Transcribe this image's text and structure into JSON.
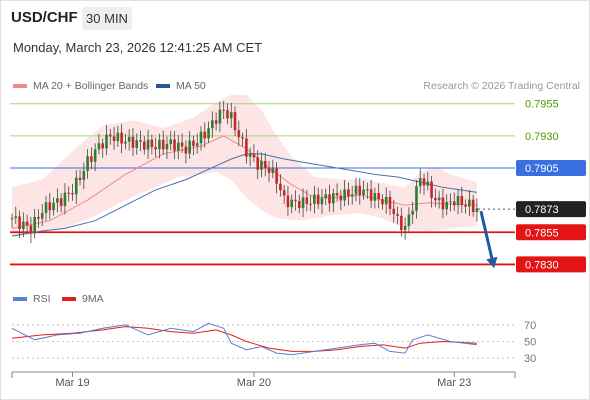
{
  "header": {
    "symbol": "USD/CHF",
    "timeframe": "30 MIN",
    "datetime": "Monday, March 23, 2026 12:41:25 AM CET"
  },
  "legend": {
    "main": [
      {
        "label": "MA 20 + Bollinger Bands",
        "color": "#f08a8a"
      },
      {
        "label": "MA 50",
        "color": "#2a5599"
      }
    ],
    "rsi": [
      {
        "label": "RSI",
        "color": "#5b7fd4"
      },
      {
        "label": "9MA",
        "color": "#e0201c"
      }
    ]
  },
  "credit": "Research © 2026 Trading Central",
  "chart_data": {
    "type": "candlestick",
    "instrument": "USD/CHF",
    "y_range": [
      0.7814,
      0.7975
    ],
    "x_ticks": [
      {
        "label": "Mar 19",
        "index": 16
      },
      {
        "label": "Mar 20",
        "index": 64
      },
      {
        "label": "Mar 23",
        "index": 117
      }
    ],
    "levels": [
      {
        "label": "0.7955",
        "value": 0.7955,
        "kind": "resistance",
        "color": "#a7d08c",
        "text_color": "#4e9a06"
      },
      {
        "label": "0.7930",
        "value": 0.793,
        "kind": "resistance",
        "color": "#a7d08c",
        "text_color": "#4e9a06"
      },
      {
        "label": "0.7905",
        "value": 0.7905,
        "kind": "pivot",
        "color": "#3a6fe0",
        "text_color": "#ffffff"
      },
      {
        "label": "0.7873",
        "value": 0.7873,
        "kind": "last",
        "color": "#222222",
        "text_color": "#ffffff"
      },
      {
        "label": "0.7855",
        "value": 0.7855,
        "kind": "support",
        "color": "#e31414",
        "text_color": "#ffffff"
      },
      {
        "label": "0.7830",
        "value": 0.783,
        "kind": "support",
        "color": "#e31414",
        "text_color": "#ffffff"
      }
    ],
    "close_path": [
      [
        0,
        0.7866
      ],
      [
        2,
        0.7862
      ],
      [
        5,
        0.7858
      ],
      [
        8,
        0.7872
      ],
      [
        10,
        0.7876
      ],
      [
        13,
        0.788
      ],
      [
        16,
        0.7888
      ],
      [
        18,
        0.7898
      ],
      [
        20,
        0.791
      ],
      [
        23,
        0.7922
      ],
      [
        26,
        0.793
      ],
      [
        30,
        0.7926
      ],
      [
        34,
        0.7924
      ],
      [
        38,
        0.7922
      ],
      [
        42,
        0.7924
      ],
      [
        46,
        0.792
      ],
      [
        49,
        0.7926
      ],
      [
        52,
        0.7935
      ],
      [
        54,
        0.7944
      ],
      [
        56,
        0.795
      ],
      [
        58,
        0.7944
      ],
      [
        60,
        0.793
      ],
      [
        62,
        0.7918
      ],
      [
        65,
        0.7908
      ],
      [
        68,
        0.7904
      ],
      [
        70,
        0.7896
      ],
      [
        72,
        0.788
      ],
      [
        74,
        0.7878
      ],
      [
        77,
        0.7878
      ],
      [
        80,
        0.788
      ],
      [
        84,
        0.7882
      ],
      [
        88,
        0.7884
      ],
      [
        92,
        0.7888
      ],
      [
        94,
        0.7886
      ],
      [
        96,
        0.7882
      ],
      [
        98,
        0.788
      ],
      [
        100,
        0.7876
      ],
      [
        102,
        0.7864
      ],
      [
        104,
        0.7858
      ],
      [
        106,
        0.7876
      ],
      [
        108,
        0.7898
      ],
      [
        110,
        0.789
      ],
      [
        112,
        0.788
      ],
      [
        115,
        0.7876
      ],
      [
        117,
        0.788
      ],
      [
        119,
        0.7878
      ],
      [
        121,
        0.7876
      ],
      [
        123,
        0.7873
      ]
    ],
    "ma20_path": [
      [
        0,
        0.7858
      ],
      [
        10,
        0.7864
      ],
      [
        20,
        0.788
      ],
      [
        30,
        0.79
      ],
      [
        40,
        0.7916
      ],
      [
        50,
        0.7922
      ],
      [
        56,
        0.793
      ],
      [
        62,
        0.792
      ],
      [
        68,
        0.7905
      ],
      [
        74,
        0.7892
      ],
      [
        80,
        0.7882
      ],
      [
        86,
        0.7882
      ],
      [
        92,
        0.7884
      ],
      [
        98,
        0.788
      ],
      [
        104,
        0.7876
      ],
      [
        110,
        0.7878
      ],
      [
        116,
        0.7877
      ],
      [
        123,
        0.7876
      ]
    ],
    "bb_upper_path": [
      [
        0,
        0.789
      ],
      [
        8,
        0.7896
      ],
      [
        16,
        0.7918
      ],
      [
        24,
        0.7938
      ],
      [
        32,
        0.7942
      ],
      [
        40,
        0.7936
      ],
      [
        48,
        0.7944
      ],
      [
        54,
        0.7956
      ],
      [
        58,
        0.7962
      ],
      [
        62,
        0.7962
      ],
      [
        66,
        0.795
      ],
      [
        70,
        0.793
      ],
      [
        74,
        0.7914
      ],
      [
        80,
        0.7898
      ],
      [
        88,
        0.7896
      ],
      [
        94,
        0.7896
      ],
      [
        100,
        0.7892
      ],
      [
        104,
        0.789
      ],
      [
        108,
        0.7902
      ],
      [
        112,
        0.7906
      ],
      [
        116,
        0.79
      ],
      [
        123,
        0.7894
      ]
    ],
    "bb_lower_path": [
      [
        0,
        0.7852
      ],
      [
        6,
        0.7854
      ],
      [
        14,
        0.7858
      ],
      [
        22,
        0.7868
      ],
      [
        30,
        0.788
      ],
      [
        38,
        0.789
      ],
      [
        44,
        0.7898
      ],
      [
        50,
        0.79
      ],
      [
        54,
        0.7902
      ],
      [
        58,
        0.7896
      ],
      [
        62,
        0.7882
      ],
      [
        66,
        0.7872
      ],
      [
        70,
        0.7866
      ],
      [
        76,
        0.7864
      ],
      [
        84,
        0.7868
      ],
      [
        92,
        0.787
      ],
      [
        98,
        0.7866
      ],
      [
        104,
        0.7858
      ],
      [
        110,
        0.7856
      ],
      [
        116,
        0.7858
      ],
      [
        123,
        0.786
      ]
    ],
    "ma50_path": [
      [
        0,
        0.7852
      ],
      [
        8,
        0.7856
      ],
      [
        14,
        0.7858
      ],
      [
        22,
        0.7864
      ],
      [
        30,
        0.7876
      ],
      [
        38,
        0.7888
      ],
      [
        46,
        0.7896
      ],
      [
        52,
        0.7904
      ],
      [
        58,
        0.7912
      ],
      [
        62,
        0.7916
      ],
      [
        66,
        0.7916
      ],
      [
        72,
        0.7912
      ],
      [
        80,
        0.7908
      ],
      [
        88,
        0.7904
      ],
      [
        96,
        0.79
      ],
      [
        102,
        0.7898
      ],
      [
        108,
        0.7894
      ],
      [
        114,
        0.789
      ],
      [
        123,
        0.7886
      ]
    ],
    "forecast": [
      [
        123,
        0.7873
      ],
      [
        128,
        0.783
      ]
    ],
    "rsi": {
      "y_ticks": [
        70,
        50,
        30
      ],
      "y_range": [
        18,
        82
      ],
      "rsi_path": [
        [
          0,
          66
        ],
        [
          6,
          52
        ],
        [
          12,
          58
        ],
        [
          18,
          60
        ],
        [
          24,
          66
        ],
        [
          30,
          70
        ],
        [
          36,
          58
        ],
        [
          42,
          66
        ],
        [
          48,
          62
        ],
        [
          52,
          72
        ],
        [
          56,
          66
        ],
        [
          58,
          48
        ],
        [
          62,
          40
        ],
        [
          66,
          44
        ],
        [
          70,
          36
        ],
        [
          74,
          34
        ],
        [
          80,
          38
        ],
        [
          86,
          42
        ],
        [
          92,
          46
        ],
        [
          96,
          48
        ],
        [
          100,
          38
        ],
        [
          104,
          36
        ],
        [
          106,
          52
        ],
        [
          110,
          58
        ],
        [
          116,
          50
        ],
        [
          123,
          46
        ]
      ],
      "ma9_path": [
        [
          0,
          54
        ],
        [
          8,
          58
        ],
        [
          16,
          60
        ],
        [
          24,
          64
        ],
        [
          30,
          68
        ],
        [
          36,
          66
        ],
        [
          42,
          62
        ],
        [
          48,
          60
        ],
        [
          54,
          64
        ],
        [
          58,
          58
        ],
        [
          62,
          50
        ],
        [
          68,
          42
        ],
        [
          74,
          38
        ],
        [
          80,
          38
        ],
        [
          86,
          40
        ],
        [
          92,
          44
        ],
        [
          98,
          46
        ],
        [
          104,
          42
        ],
        [
          108,
          48
        ],
        [
          114,
          50
        ],
        [
          123,
          48
        ]
      ]
    }
  }
}
